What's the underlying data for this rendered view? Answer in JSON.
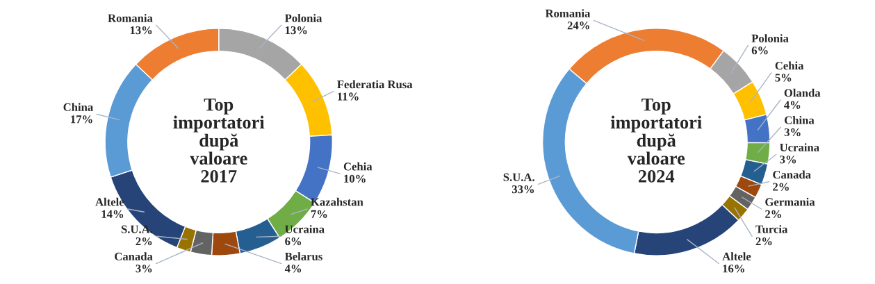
{
  "chart_data": [
    {
      "type": "donut",
      "title": "Top importatori după valoare 2017",
      "value_labels": [
        "13%",
        "11%",
        "10%",
        "7%",
        "6%",
        "4%",
        "3%",
        "2%",
        "14%",
        "17%",
        "13%"
      ],
      "categories": [
        "Polonia",
        "Federatia Rusa",
        "Cehia",
        "Kazahstan",
        "Ucraina",
        "Belarus",
        "Canada",
        "S.U.A.",
        "Altele",
        "China",
        "Romania"
      ],
      "values": [
        13,
        11,
        10,
        7,
        6,
        4,
        3,
        2,
        14,
        17,
        13
      ],
      "colors": [
        "#a5a5a5",
        "#ffc000",
        "#4472c4",
        "#70ad47",
        "#255e91",
        "#9e480e",
        "#636363",
        "#997300",
        "#264478",
        "#5b9bd5",
        "#ed7d31"
      ]
    },
    {
      "type": "donut",
      "title": "Top importatori după valoare 2024",
      "value_labels": [
        "24%",
        "6%",
        "5%",
        "4%",
        "3%",
        "3%",
        "2%",
        "2%",
        "2%",
        "16%",
        "33%"
      ],
      "categories": [
        "Romania",
        "Polonia",
        "Cehia",
        "Olanda",
        "China",
        "Ucraina",
        "Canada",
        "Germania",
        "Turcia",
        "Altele",
        "S.U.A."
      ],
      "values": [
        24,
        6,
        5,
        4,
        3,
        3,
        2,
        2,
        2,
        16,
        33
      ],
      "colors": [
        "#ed7d31",
        "#a5a5a5",
        "#ffc000",
        "#4472c4",
        "#70ad47",
        "#255e91",
        "#9e480e",
        "#636363",
        "#997300",
        "#264478",
        "#5b9bd5"
      ]
    }
  ]
}
